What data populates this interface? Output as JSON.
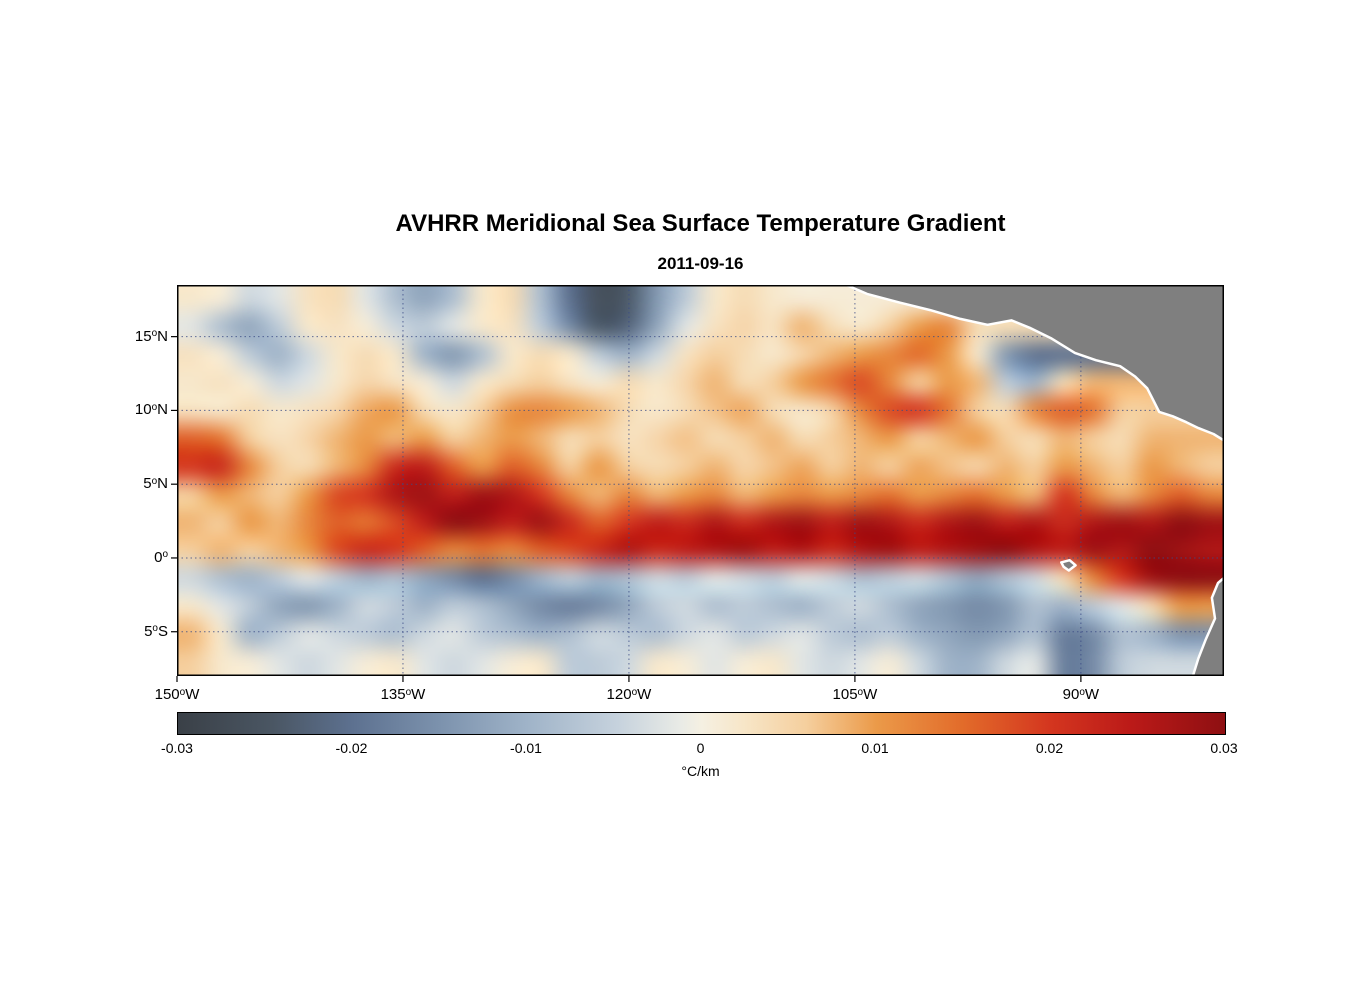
{
  "title": "AVHRR Meridional Sea Surface Temperature Gradient",
  "subtitle": "2011-09-16",
  "colors": {
    "land": "#7f7f7f",
    "coast_outline": "#ffffff",
    "frame": "#000000",
    "gridline": "#3b4c86",
    "background": "#ffffff"
  },
  "chart_data": {
    "type": "heatmap",
    "title": "AVHRR Meridional Sea Surface Temperature Gradient",
    "date": "2011-09-16",
    "lon_range": [
      -150,
      -80.5
    ],
    "lat_range": [
      -8,
      18.5
    ],
    "grid_on": true,
    "x_ticks": [
      {
        "lon": -150,
        "num": "150",
        "dir": "W"
      },
      {
        "lon": -135,
        "num": "135",
        "dir": "W"
      },
      {
        "lon": -120,
        "num": "120",
        "dir": "W"
      },
      {
        "lon": -105,
        "num": "105",
        "dir": "W"
      },
      {
        "lon": -90,
        "num": "90",
        "dir": "W"
      }
    ],
    "y_ticks": [
      {
        "lat": 15,
        "num": "15",
        "dir": "N"
      },
      {
        "lat": 10,
        "num": "10",
        "dir": "N"
      },
      {
        "lat": 5,
        "num": "5",
        "dir": "N"
      },
      {
        "lat": 0,
        "num": "0",
        "dir": ""
      },
      {
        "lat": -5,
        "num": "5",
        "dir": "S"
      }
    ],
    "colorbar": {
      "min": -0.03,
      "max": 0.03,
      "label": "°C/km",
      "ticks": [
        {
          "value": -0.03,
          "label": "-0.03"
        },
        {
          "value": -0.02,
          "label": "-0.02"
        },
        {
          "value": -0.01,
          "label": "-0.01"
        },
        {
          "value": 0,
          "label": "0"
        },
        {
          "value": 0.01,
          "label": "0.01"
        },
        {
          "value": 0.02,
          "label": "0.02"
        },
        {
          "value": 0.03,
          "label": "0.03"
        }
      ],
      "stops": [
        [
          0.0,
          "#3a4047"
        ],
        [
          0.09,
          "#4a5663"
        ],
        [
          0.167,
          "#5d7190"
        ],
        [
          0.25,
          "#7c92ad"
        ],
        [
          0.333,
          "#9fb3c8"
        ],
        [
          0.42,
          "#c6d2dd"
        ],
        [
          0.48,
          "#e9ebe6"
        ],
        [
          0.5,
          "#f5f0e2"
        ],
        [
          0.54,
          "#f7e6c8"
        ],
        [
          0.6,
          "#f5cf9e"
        ],
        [
          0.667,
          "#eb9a49"
        ],
        [
          0.75,
          "#e26b2a"
        ],
        [
          0.833,
          "#d4361f"
        ],
        [
          0.91,
          "#bb1a18"
        ],
        [
          1.0,
          "#8e0f12"
        ]
      ]
    },
    "grid": {
      "cols": 36,
      "rows": 14,
      "units": "degC_per_km",
      "values": [
        [
          0.002,
          0.001,
          -0.004,
          -0.002,
          0.003,
          0.004,
          -0.002,
          -0.008,
          -0.012,
          -0.008,
          0.002,
          0.004,
          -0.008,
          -0.02,
          -0.026,
          -0.024,
          -0.014,
          -0.006,
          0.002,
          0.004,
          0.002,
          0.001,
          null,
          null,
          null,
          null,
          null,
          null,
          null,
          null,
          null,
          null,
          null,
          null,
          null,
          null
        ],
        [
          -0.002,
          -0.008,
          -0.012,
          -0.006,
          0.002,
          0.003,
          0.001,
          -0.004,
          -0.006,
          -0.002,
          0.002,
          0.003,
          -0.006,
          -0.016,
          -0.024,
          -0.022,
          -0.012,
          -0.002,
          0.003,
          0.005,
          0.003,
          0.008,
          0.004,
          0.002,
          0.006,
          0.01,
          0.012,
          0.004,
          null,
          null,
          null,
          null,
          null,
          null,
          null,
          null
        ],
        [
          0.003,
          0.001,
          -0.006,
          -0.01,
          -0.004,
          0.002,
          0.004,
          0.002,
          -0.01,
          -0.014,
          -0.008,
          0.002,
          0.004,
          0.002,
          -0.006,
          -0.01,
          -0.004,
          0.003,
          0.006,
          0.004,
          0.002,
          0.005,
          0.008,
          0.01,
          0.012,
          0.015,
          0.01,
          0.002,
          -0.014,
          -0.02,
          null,
          null,
          null,
          null,
          null,
          null
        ],
        [
          0.002,
          0.003,
          0.001,
          -0.004,
          -0.002,
          0.002,
          0.005,
          0.003,
          0.001,
          -0.004,
          0.002,
          0.004,
          0.006,
          0.003,
          0.001,
          0.004,
          0.002,
          0.005,
          0.008,
          0.004,
          0.006,
          0.01,
          0.014,
          0.018,
          0.012,
          0.006,
          0.01,
          0.008,
          -0.006,
          -0.01,
          0.004,
          0.008,
          null,
          null,
          null,
          null
        ],
        [
          0.003,
          0.002,
          0.004,
          0.002,
          0.003,
          0.005,
          0.009,
          0.01,
          0.004,
          0.002,
          0.006,
          0.011,
          0.012,
          0.01,
          0.008,
          0.004,
          0.002,
          0.004,
          0.007,
          0.009,
          0.004,
          0.002,
          0.005,
          0.012,
          0.018,
          0.02,
          0.014,
          0.006,
          0.004,
          0.012,
          0.016,
          0.014,
          0.006,
          null,
          null,
          null
        ],
        [
          0.016,
          0.014,
          0.006,
          0.003,
          0.005,
          0.008,
          0.01,
          0.008,
          0.01,
          0.006,
          0.008,
          0.01,
          0.008,
          0.004,
          0.006,
          0.003,
          0.005,
          0.007,
          0.004,
          0.006,
          0.008,
          0.004,
          0.006,
          0.008,
          0.01,
          0.006,
          0.008,
          0.01,
          0.006,
          0.004,
          0.008,
          0.006,
          0.004,
          0.008,
          null,
          null
        ],
        [
          0.02,
          0.022,
          0.012,
          0.006,
          0.004,
          0.008,
          0.012,
          0.022,
          0.024,
          0.016,
          0.01,
          0.016,
          0.012,
          0.006,
          0.01,
          0.006,
          0.004,
          0.006,
          0.008,
          0.005,
          0.007,
          0.009,
          0.006,
          0.008,
          0.006,
          0.009,
          0.007,
          0.005,
          0.008,
          0.006,
          0.01,
          0.008,
          0.006,
          0.01,
          0.008,
          0.006
        ],
        [
          0.006,
          0.01,
          0.008,
          0.006,
          0.01,
          0.018,
          0.02,
          0.026,
          0.028,
          0.024,
          0.028,
          0.026,
          0.02,
          0.012,
          0.008,
          0.012,
          0.008,
          0.01,
          0.012,
          0.008,
          0.01,
          0.012,
          0.01,
          0.012,
          0.014,
          0.01,
          0.012,
          0.014,
          0.01,
          0.008,
          0.02,
          0.012,
          0.008,
          0.012,
          0.016,
          0.012
        ],
        [
          0.008,
          0.006,
          0.01,
          0.008,
          0.012,
          0.016,
          0.014,
          0.018,
          0.024,
          0.03,
          0.028,
          0.024,
          0.028,
          0.022,
          0.016,
          0.02,
          0.024,
          0.022,
          0.026,
          0.022,
          0.026,
          0.028,
          0.024,
          0.028,
          0.026,
          0.022,
          0.026,
          0.028,
          0.024,
          0.026,
          0.022,
          0.026,
          0.028,
          0.026,
          0.03,
          0.028
        ],
        [
          0.006,
          0.008,
          0.006,
          0.008,
          0.01,
          0.018,
          0.022,
          0.02,
          0.016,
          0.012,
          0.014,
          0.012,
          0.016,
          0.018,
          0.022,
          0.026,
          0.022,
          0.024,
          0.026,
          0.028,
          0.024,
          0.026,
          0.022,
          0.026,
          0.028,
          0.024,
          0.026,
          0.028,
          0.03,
          0.026,
          0.024,
          0.028,
          0.026,
          0.03,
          0.028,
          0.026
        ],
        [
          -0.004,
          -0.008,
          -0.01,
          -0.006,
          -0.002,
          -0.006,
          -0.01,
          -0.008,
          -0.012,
          -0.016,
          -0.02,
          -0.016,
          -0.01,
          -0.006,
          -0.01,
          -0.008,
          -0.004,
          -0.006,
          -0.002,
          -0.004,
          -0.006,
          -0.002,
          -0.004,
          -0.008,
          -0.006,
          -0.004,
          -0.008,
          -0.012,
          -0.008,
          -0.004,
          0.004,
          0.012,
          0.02,
          0.028,
          0.03,
          null
        ],
        [
          0.002,
          -0.002,
          -0.006,
          -0.012,
          -0.014,
          -0.01,
          -0.004,
          -0.006,
          -0.01,
          -0.006,
          -0.008,
          -0.012,
          -0.016,
          -0.018,
          -0.016,
          -0.012,
          -0.006,
          -0.004,
          -0.008,
          -0.006,
          -0.008,
          -0.01,
          -0.006,
          -0.004,
          -0.008,
          -0.012,
          -0.014,
          -0.016,
          -0.014,
          -0.008,
          -0.01,
          -0.006,
          -0.002,
          0.004,
          0.01,
          null
        ],
        [
          0.008,
          0.002,
          -0.01,
          -0.006,
          -0.002,
          -0.004,
          -0.006,
          -0.008,
          -0.004,
          -0.002,
          -0.006,
          -0.008,
          -0.01,
          -0.008,
          -0.004,
          -0.006,
          -0.008,
          -0.004,
          -0.002,
          -0.006,
          -0.004,
          -0.002,
          -0.006,
          -0.008,
          -0.006,
          -0.01,
          -0.012,
          -0.014,
          -0.012,
          -0.008,
          -0.018,
          -0.016,
          -0.008,
          -0.01,
          -0.015,
          null
        ],
        [
          0.006,
          0.002,
          0.001,
          -0.002,
          -0.004,
          -0.002,
          0.001,
          0.002,
          -0.002,
          -0.004,
          -0.002,
          0.001,
          0.002,
          -0.006,
          -0.006,
          -0.004,
          0.002,
          0.001,
          -0.002,
          0.001,
          0.002,
          -0.002,
          -0.004,
          -0.002,
          0.001,
          -0.004,
          -0.01,
          -0.01,
          -0.004,
          -0.002,
          -0.018,
          -0.016,
          -0.006,
          -0.004,
          null,
          null
        ]
      ]
    },
    "land_polygons": {
      "central_america": [
        [
          -105.8,
          18.6
        ],
        [
          -104.2,
          17.9
        ],
        [
          -102.0,
          17.3
        ],
        [
          -100.0,
          16.8
        ],
        [
          -98.0,
          16.2
        ],
        [
          -96.2,
          15.8
        ],
        [
          -94.6,
          16.1
        ],
        [
          -93.4,
          15.6
        ],
        [
          -92.0,
          14.9
        ],
        [
          -90.4,
          13.9
        ],
        [
          -89.0,
          13.4
        ],
        [
          -87.4,
          13.0
        ],
        [
          -86.4,
          12.3
        ],
        [
          -85.6,
          11.5
        ],
        [
          -85.2,
          10.7
        ],
        [
          -84.8,
          9.9
        ],
        [
          -83.9,
          9.6
        ],
        [
          -83.0,
          9.2
        ],
        [
          -82.2,
          8.8
        ],
        [
          -81.2,
          8.4
        ],
        [
          -80.4,
          7.9
        ],
        [
          -80.0,
          7.6
        ],
        [
          -80.0,
          18.6
        ]
      ],
      "south_america": [
        [
          -80.0,
          -0.9
        ],
        [
          -80.9,
          -1.7
        ],
        [
          -81.3,
          -2.7
        ],
        [
          -81.1,
          -4.1
        ],
        [
          -81.7,
          -5.5
        ],
        [
          -82.2,
          -6.8
        ],
        [
          -82.6,
          -8.1
        ],
        [
          -80.0,
          -8.1
        ]
      ],
      "galapagos": [
        [
          -91.3,
          -0.3
        ],
        [
          -90.75,
          -0.15
        ],
        [
          -90.35,
          -0.5
        ],
        [
          -90.8,
          -0.85
        ],
        [
          -91.15,
          -0.6
        ]
      ]
    }
  }
}
